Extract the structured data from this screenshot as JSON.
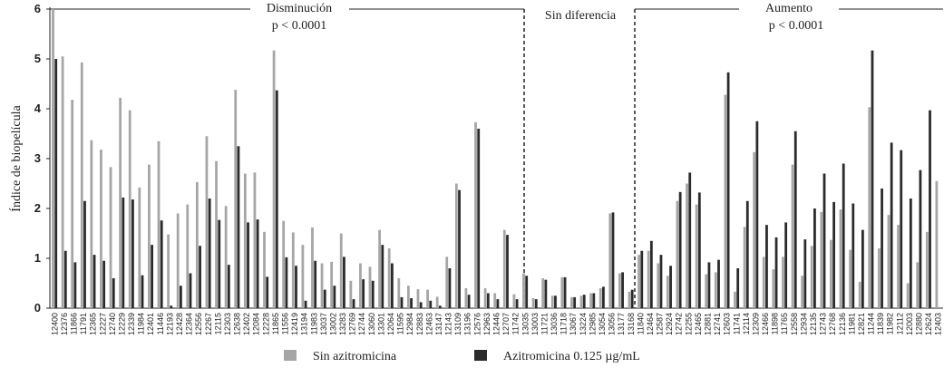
{
  "chart_data": {
    "type": "bar",
    "y_label": "Índice de biopelícula",
    "annotations": [
      "Disminución",
      "p < 0.0001",
      "Sin diferencia",
      "Aumento",
      "p < 0.0001"
    ],
    "categories": [
      "12400",
      "12376",
      "11866",
      "11791",
      "12365",
      "12227",
      "12740",
      "12229",
      "12339",
      "11984",
      "12401",
      "11446",
      "12193",
      "12428",
      "12364",
      "12556",
      "12267",
      "12115",
      "12303",
      "12638",
      "12402",
      "12084",
      "12228",
      "11865",
      "11556",
      "12419",
      "13194",
      "11983",
      "13037",
      "13002",
      "13283",
      "12769",
      "12744",
      "13060",
      "13301",
      "12064",
      "11595",
      "12984",
      "12883",
      "12463",
      "13147",
      "12143",
      "13109",
      "13196",
      "12576",
      "12963",
      "12446",
      "12707",
      "11742",
      "13035",
      "13003",
      "11721",
      "13036",
      "11718",
      "13067",
      "13224",
      "12985",
      "13054",
      "13056",
      "13177",
      "13168",
      "11840",
      "12464",
      "12587",
      "12924",
      "12742",
      "12255",
      "12465",
      "12881",
      "12741",
      "12603",
      "11741",
      "12114",
      "12309",
      "12466",
      "11898",
      "11765",
      "12558",
      "12934",
      "12135",
      "12743",
      "12768",
      "12136",
      "11981",
      "12821",
      "11244",
      "11839",
      "11982",
      "12112",
      "12003",
      "12880",
      "12624",
      "12403"
    ],
    "series": [
      {
        "name": "Sin azitromicina",
        "color": "#a6a6a6",
        "values": [
          6.0,
          5.05,
          4.18,
          4.93,
          3.37,
          3.18,
          2.83,
          4.22,
          3.97,
          2.42,
          2.88,
          3.35,
          1.48,
          1.9,
          2.08,
          2.53,
          3.45,
          2.95,
          2.05,
          4.38,
          2.7,
          2.72,
          1.53,
          5.17,
          1.75,
          1.52,
          1.27,
          1.62,
          0.9,
          0.93,
          1.5,
          0.55,
          0.9,
          0.83,
          1.57,
          1.2,
          0.6,
          0.45,
          0.38,
          0.37,
          0.23,
          1.03,
          2.5,
          0.4,
          3.73,
          0.4,
          0.3,
          1.57,
          0.28,
          0.7,
          0.2,
          0.6,
          0.25,
          0.62,
          0.22,
          0.25,
          0.3,
          0.4,
          1.9,
          0.7,
          0.33,
          1.07,
          1.15,
          0.9,
          0.65,
          2.15,
          2.5,
          2.08,
          0.68,
          0.72,
          4.28,
          0.33,
          1.63,
          3.13,
          1.03,
          0.78,
          1.03,
          2.88,
          0.65,
          1.25,
          1.93,
          1.37,
          1.98,
          1.17,
          0.53,
          4.03,
          1.2,
          1.87,
          1.67,
          0.5,
          0.92,
          1.53,
          2.55
        ]
      },
      {
        "name": "Azitromicina 0.125 µg/mL",
        "color": "#2b2b2b",
        "values": [
          5.0,
          1.15,
          0.92,
          2.15,
          1.07,
          0.95,
          0.6,
          2.22,
          2.18,
          0.66,
          1.27,
          1.76,
          0.05,
          0.45,
          0.7,
          1.25,
          2.2,
          1.77,
          0.87,
          3.25,
          1.72,
          1.78,
          0.63,
          4.37,
          1.02,
          0.85,
          0.15,
          0.95,
          0.37,
          0.45,
          1.03,
          0.18,
          0.58,
          0.55,
          1.27,
          0.9,
          0.22,
          0.2,
          0.12,
          0.15,
          0.05,
          0.8,
          2.37,
          0.27,
          3.6,
          0.3,
          0.18,
          1.47,
          0.18,
          0.65,
          0.18,
          0.57,
          0.25,
          0.62,
          0.22,
          0.27,
          0.3,
          0.43,
          1.92,
          0.72,
          0.37,
          1.15,
          1.35,
          1.07,
          0.85,
          2.33,
          2.72,
          2.32,
          0.92,
          0.97,
          4.73,
          0.8,
          2.15,
          3.75,
          1.67,
          1.42,
          1.72,
          3.55,
          1.38,
          2.0,
          2.7,
          2.13,
          2.9,
          2.1,
          1.57,
          5.17,
          2.4,
          3.32,
          3.17,
          2.2,
          2.77,
          3.97,
          null
        ]
      }
    ],
    "ylim": [
      0,
      6
    ],
    "yticks": [
      0,
      1,
      2,
      3,
      4,
      5,
      6
    ],
    "legend": "bottom"
  }
}
